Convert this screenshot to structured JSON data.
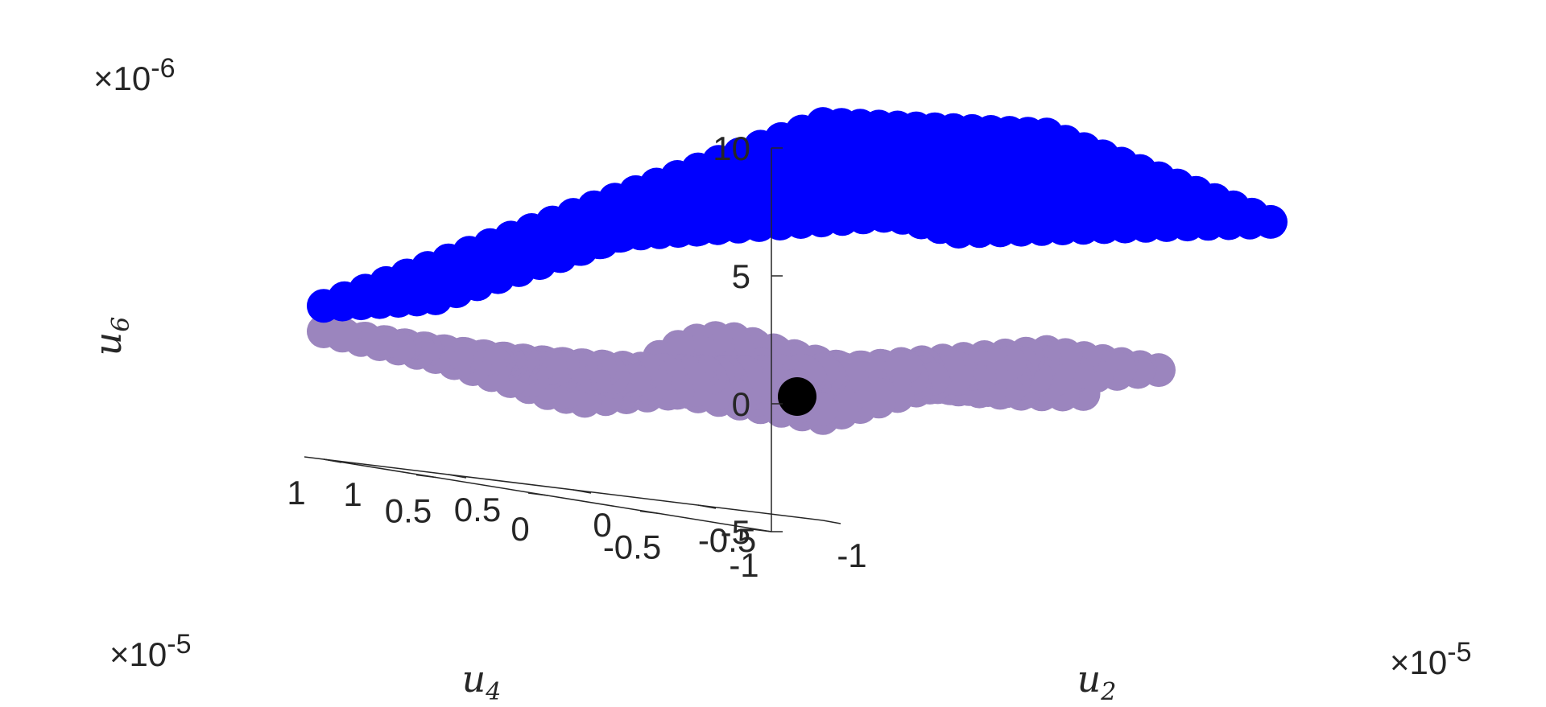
{
  "chart_data": {
    "type": "scatter",
    "view": "3d",
    "colors": {
      "blue_cloud": "#0000ff",
      "purple_cloud": "#9b85be",
      "origin_point": "#000000",
      "axis": "#262626"
    },
    "axes": {
      "x": {
        "name": "u",
        "sub": "2",
        "multiplier": "×10",
        "exponent": "-5",
        "lim": [
          -1,
          1
        ],
        "ticks": [
          -1,
          -0.5,
          0,
          0.5,
          1
        ],
        "tick_labels": [
          "-1",
          "-0.5",
          "0",
          "0.5",
          "1"
        ]
      },
      "y": {
        "name": "u",
        "sub": "4",
        "multiplier": "×10",
        "exponent": "-5",
        "lim": [
          -1,
          1
        ],
        "ticks": [
          -1,
          -0.5,
          0,
          0.5,
          1
        ],
        "tick_labels": [
          "-1",
          "-0.5",
          "0",
          "0.5",
          "1"
        ]
      },
      "z": {
        "name": "u",
        "sub": "6",
        "multiplier": "×10",
        "exponent": "-6",
        "lim": [
          -5,
          10
        ],
        "ticks": [
          -5,
          0,
          5,
          10
        ],
        "tick_labels": [
          "-5",
          "0",
          "5",
          "10"
        ]
      }
    },
    "grid": false,
    "series": [
      {
        "description": "purple surface",
        "color": "#9b85be",
        "edges": {
          "left": {
            "u2": [
              0.25,
              0.75,
              1,
              1,
              1
            ],
            "u4": [
              -1,
              -1,
              -0.75,
              -0.5,
              -0.25
            ],
            "u6": [
              2,
              2,
              3.5,
              5,
              5.5
            ]
          },
          "front": {
            "u2": [
              1,
              1,
              1,
              1,
              1
            ],
            "u4": [
              -1,
              -0.5,
              0,
              0.5,
              1
            ],
            "u6": [
              0,
              -1.2,
              -1,
              -0.3,
              0
            ]
          },
          "right": {
            "u2": [
              -1,
              -1,
              -1,
              -1,
              -1
            ],
            "u4": [
              1,
              0.75,
              0.5,
              0.25,
              0
            ],
            "u6": [
              -1,
              0,
              1,
              2,
              3
            ]
          }
        }
      },
      {
        "description": "blue surface",
        "color": "#0000ff",
        "edges": {
          "back": {
            "u2": [
              -1,
              -1,
              -1,
              -1,
              -1
            ],
            "u4": [
              -1,
              -0.5,
              0,
              0.5,
              1
            ],
            "u6": [
              9.5,
              10.5,
              11.5,
              11,
              10.5
            ]
          },
          "lower": {
            "u2": [
              1,
              0.5,
              0,
              -0.5,
              -1
            ],
            "u4": [
              -0.75,
              -0.5,
              0,
              0.5,
              1
            ],
            "u6": [
              6.5,
              6,
              5,
              2,
              1
            ]
          }
        }
      },
      {
        "description": "origin point",
        "color": "#000000",
        "points": [
          {
            "u2": 0,
            "u4": 0,
            "u6": 0
          }
        ]
      }
    ]
  }
}
